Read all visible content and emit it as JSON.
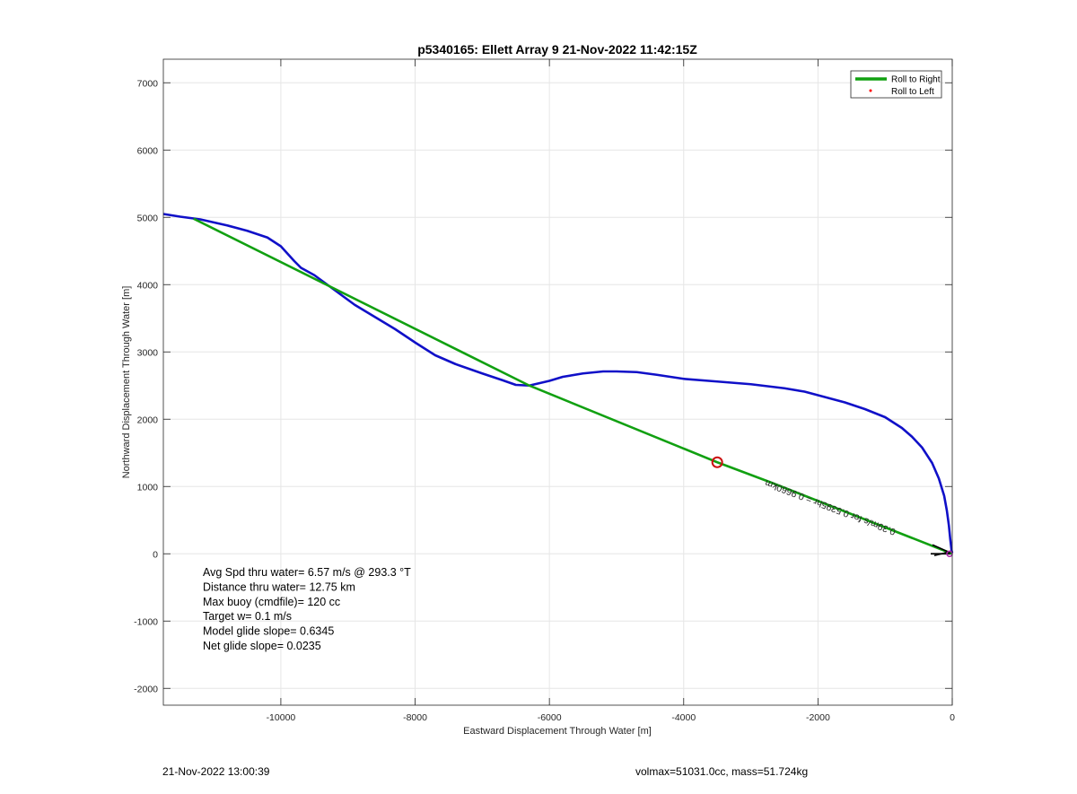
{
  "chart_data": {
    "type": "line",
    "title": "p5340165: Ellett Array 9 21-Nov-2022 11:42:15Z",
    "xlabel": "Eastward Displacement Through Water [m]",
    "ylabel": "Northward Displacement Through Water [m]",
    "xlim": [
      -11750,
      0
    ],
    "ylim": [
      -2250,
      7350
    ],
    "xticks": [
      -10000,
      -8000,
      -6000,
      -4000,
      -2000,
      0
    ],
    "yticks": [
      -2000,
      -1000,
      0,
      1000,
      2000,
      3000,
      4000,
      5000,
      6000,
      7000
    ],
    "grid": true,
    "legend_position": "top-right",
    "legend": [
      {
        "label": "Roll to Right",
        "color": "#11a011",
        "style": "line"
      },
      {
        "label": "Roll to Left",
        "color": "#ff0000",
        "style": "dot"
      }
    ],
    "series": [
      {
        "color": "#1010c8",
        "x": [
          -11750,
          -11500,
          -11200,
          -10800,
          -10500,
          -10200,
          -10000,
          -9800,
          -9700,
          -9500,
          -9200,
          -8900,
          -8600,
          -8300,
          -8000,
          -7700,
          -7400,
          -7000,
          -6700,
          -6500,
          -6300,
          -6000,
          -5800,
          -5500,
          -5200,
          -5000,
          -4700,
          -4400,
          -4000,
          -3500,
          -3000,
          -2500,
          -2200,
          -1900,
          -1600,
          -1300,
          -1000,
          -750,
          -600,
          -450,
          -300,
          -200,
          -120,
          -80,
          -50,
          -30,
          -10,
          0
        ],
        "y": [
          5050,
          5010,
          4970,
          4880,
          4800,
          4700,
          4570,
          4350,
          4250,
          4140,
          3920,
          3700,
          3520,
          3340,
          3140,
          2950,
          2820,
          2680,
          2580,
          2510,
          2500,
          2570,
          2630,
          2680,
          2710,
          2710,
          2700,
          2660,
          2600,
          2560,
          2520,
          2460,
          2410,
          2330,
          2250,
          2150,
          2030,
          1870,
          1740,
          1580,
          1350,
          1120,
          860,
          640,
          420,
          220,
          50,
          10
        ]
      },
      {
        "name": "Roll to Right",
        "color": "#11a011",
        "x": [
          -11300,
          -6300,
          -3500,
          -2700,
          0
        ],
        "y": [
          4980,
          2500,
          1360,
          1060,
          0
        ]
      }
    ],
    "markers": [
      {
        "type": "circle",
        "color": "#cc1111",
        "x": -3500,
        "y": 1360
      }
    ],
    "annotations": {
      "rotated_label": "0.39m/s for 0.5395hr = 0.9660km",
      "rotated_label_x": -1800,
      "rotated_label_y": 730,
      "rotated_label_angle_deg": 21,
      "stats": [
        "Avg Spd thru water=  6.57 m/s @ 293.3 °T",
        "Distance thru water= 12.75 km",
        "Max buoy (cmdfile)= 120 cc",
        "Target w= 0.1 m/s",
        "Model glide slope= 0.6345",
        "Net glide slope= 0.0235"
      ]
    }
  },
  "footer": {
    "date": "21-Nov-2022 13:00:39",
    "mass": "volmax=51031.0cc, mass=51.724kg"
  }
}
